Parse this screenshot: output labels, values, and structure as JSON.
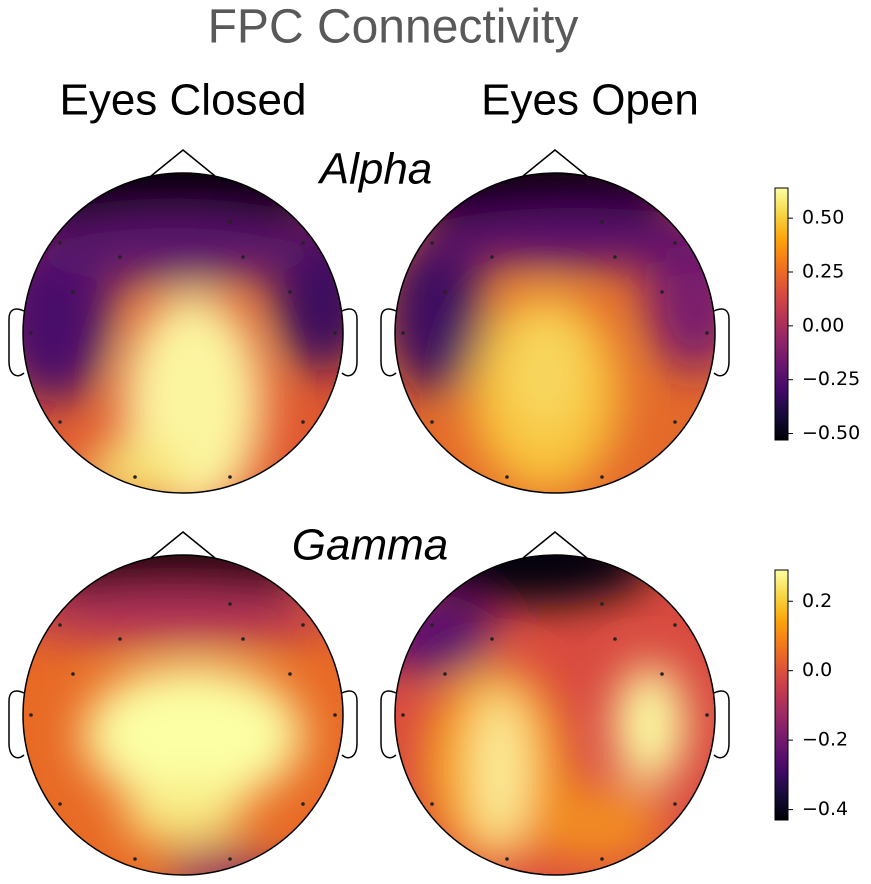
{
  "title": "FPC Connectivity",
  "columns": [
    "Eyes Closed",
    "Eyes Open"
  ],
  "chart_data": [
    {
      "type": "topomap",
      "title": "Alpha",
      "colormap": "inferno",
      "ylim": [
        -0.53,
        0.64
      ],
      "yticks": [
        {
          "value": 0.5,
          "label": "0.50"
        },
        {
          "value": 0.25,
          "label": "0.25"
        },
        {
          "value": 0,
          "label": "0.00"
        },
        {
          "value": -0.25,
          "label": "−0.25"
        },
        {
          "value": -0.5,
          "label": "−0.50"
        }
      ]
    },
    {
      "type": "topomap",
      "title": "Gamma",
      "colormap": "inferno",
      "ylim": [
        -0.43,
        0.29
      ],
      "yticks": [
        0.2,
        {
          "value": 0,
          "label": "0.0"
        },
        {
          "value": -0.2,
          "label": "−0.2"
        },
        {
          "value": -0.4,
          "label": "−0.4"
        }
      ]
    }
  ]
}
